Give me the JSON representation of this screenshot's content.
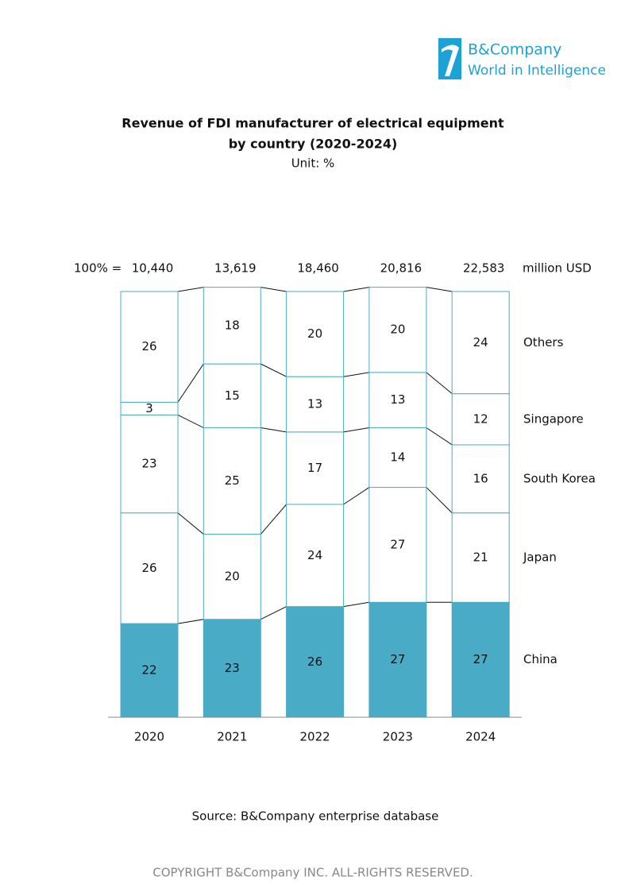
{
  "brand": {
    "name": "B&Company",
    "tagline": "World in Intelligence"
  },
  "chart_data": {
    "type": "stacked_bar",
    "title": [
      "Revenue of FDI manufacturer of electrical equipment",
      "by country (2020-2024)"
    ],
    "subtitle": "Unit: %",
    "categories": [
      "2020",
      "2021",
      "2022",
      "2023",
      "2024"
    ],
    "series": [
      {
        "name": "China",
        "color": "#4aabc6",
        "values": [
          22,
          23,
          26,
          27,
          27
        ]
      },
      {
        "name": "Japan",
        "color": "#ffffff",
        "values": [
          26,
          20,
          24,
          27,
          21
        ]
      },
      {
        "name": "South Korea",
        "color": "#ffffff",
        "values": [
          23,
          25,
          17,
          14,
          16
        ]
      },
      {
        "name": "Singapore",
        "color": "#ffffff",
        "values": [
          3,
          15,
          13,
          13,
          12
        ]
      },
      {
        "name": "Others",
        "color": "#ffffff",
        "values": [
          26,
          18,
          20,
          20,
          24
        ]
      }
    ],
    "ylim": [
      0,
      100
    ],
    "totals": {
      "prefix": "100% =",
      "values": [
        10440,
        13619,
        18460,
        20816,
        22583
      ],
      "value_labels": [
        "10,440",
        "13,619",
        "18,460",
        "20,816",
        "22,583"
      ],
      "unit": "million USD"
    },
    "source": "Source: B&Company enterprise database"
  },
  "footer": "COPYRIGHT B&Company INC. ALL-RIGHTS RESERVED."
}
